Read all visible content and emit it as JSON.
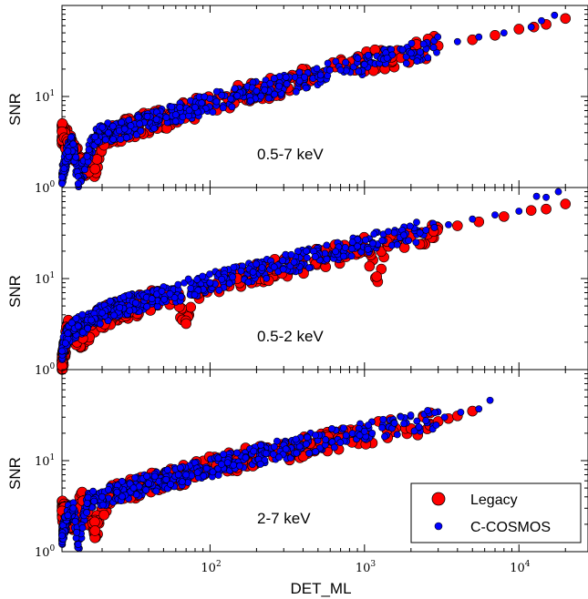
{
  "chart_data": {
    "type": "scatter",
    "xlabel": "DET_ML",
    "ylabel": "SNR",
    "xscale": "log",
    "yscale": "log",
    "xlim": [
      11,
      28000
    ],
    "ylim": [
      1,
      100
    ],
    "x_tick_labels": [
      {
        "base": "10",
        "exp": "2"
      },
      {
        "base": "10",
        "exp": "3"
      },
      {
        "base": "10",
        "exp": "4"
      }
    ],
    "y_tick_labels": [
      {
        "base": "10",
        "exp": "0"
      },
      {
        "base": "10",
        "exp": "1"
      }
    ],
    "grid": false,
    "legend": {
      "placement": "bottom-right of bottom panel",
      "entries": [
        {
          "label": "Legacy",
          "color": "#ff0000"
        },
        {
          "label": "C-COSMOS",
          "color": "#0000ff"
        }
      ]
    },
    "colors": {
      "legacy": "#ff0000",
      "ccosmos": "#0000ff",
      "edge": "#000000"
    },
    "panels": [
      {
        "band": "0.5-7 keV",
        "series": [
          {
            "name": "Legacy",
            "points": [
              [
                12,
                3.2
              ],
              [
                13,
                2.6
              ],
              [
                15,
                1.8
              ],
              [
                18,
                1.6
              ],
              [
                20,
                3.4
              ],
              [
                25,
                4.0
              ],
              [
                30,
                4.5
              ],
              [
                40,
                5.2
              ],
              [
                55,
                6.0
              ],
              [
                75,
                7.0
              ],
              [
                100,
                8.5
              ],
              [
                130,
                9.5
              ],
              [
                170,
                10.5
              ],
              [
                230,
                12.0
              ],
              [
                300,
                13.5
              ],
              [
                400,
                15.5
              ],
              [
                550,
                18.0
              ],
              [
                750,
                20.5
              ],
              [
                1000,
                23.5
              ],
              [
                1500,
                27.0
              ],
              [
                2000,
                31.0
              ],
              [
                3000,
                36.0
              ],
              [
                5000,
                42.0
              ],
              [
                7000,
                47.0
              ],
              [
                10000,
                55.0
              ],
              [
                12500,
                58.0
              ],
              [
                15000,
                62.0
              ],
              [
                20000,
                72.0
              ]
            ]
          },
          {
            "name": "C-COSMOS",
            "points": [
              [
                11,
                1.3
              ],
              [
                12,
                2.5
              ],
              [
                13,
                3.0
              ],
              [
                14,
                1.1
              ],
              [
                16,
                2.2
              ],
              [
                18,
                3.6
              ],
              [
                22,
                4.0
              ],
              [
                28,
                4.4
              ],
              [
                35,
                5.0
              ],
              [
                45,
                5.6
              ],
              [
                60,
                6.3
              ],
              [
                80,
                7.6
              ],
              [
                110,
                8.8
              ],
              [
                150,
                10.2
              ],
              [
                200,
                11.5
              ],
              [
                280,
                13.0
              ],
              [
                380,
                14.8
              ],
              [
                520,
                17.2
              ],
              [
                700,
                19.5
              ],
              [
                1000,
                22.5
              ],
              [
                1400,
                26.5
              ],
              [
                2000,
                30.0
              ],
              [
                2800,
                34.5
              ],
              [
                4000,
                40.0
              ],
              [
                5500,
                45.0
              ],
              [
                8000,
                50.0
              ],
              [
                12000,
                58.0
              ],
              [
                14000,
                68.0
              ],
              [
                17000,
                78.0
              ]
            ]
          }
        ]
      },
      {
        "band": "0.5-2 keV",
        "series": [
          {
            "name": "Legacy",
            "points": [
              [
                11,
                1.1
              ],
              [
                12,
                2.8
              ],
              [
                15,
                2.2
              ],
              [
                18,
                3.4
              ],
              [
                22,
                4.0
              ],
              [
                28,
                4.6
              ],
              [
                35,
                5.2
              ],
              [
                45,
                5.8
              ],
              [
                60,
                6.6
              ],
              [
                70,
                3.2
              ],
              [
                80,
                7.6
              ],
              [
                110,
                8.8
              ],
              [
                150,
                10.0
              ],
              [
                200,
                11.5
              ],
              [
                280,
                13.0
              ],
              [
                380,
                14.6
              ],
              [
                520,
                16.8
              ],
              [
                700,
                19.0
              ],
              [
                1000,
                22.0
              ],
              [
                1200,
                10.5
              ],
              [
                1400,
                25.5
              ],
              [
                2000,
                29.0
              ],
              [
                2800,
                33.0
              ],
              [
                4000,
                38.0
              ],
              [
                5500,
                42.0
              ],
              [
                8000,
                48.0
              ],
              [
                12000,
                56.0
              ],
              [
                15000,
                58.0
              ],
              [
                20000,
                66.0
              ]
            ]
          },
          {
            "name": "C-COSMOS",
            "points": [
              [
                11,
                1.6
              ],
              [
                12,
                2.5
              ],
              [
                14,
                3.0
              ],
              [
                17,
                3.5
              ],
              [
                20,
                4.2
              ],
              [
                26,
                4.8
              ],
              [
                33,
                5.4
              ],
              [
                42,
                6.0
              ],
              [
                55,
                6.8
              ],
              [
                75,
                7.8
              ],
              [
                100,
                9.0
              ],
              [
                140,
                10.4
              ],
              [
                190,
                11.8
              ],
              [
                260,
                13.4
              ],
              [
                350,
                15.2
              ],
              [
                480,
                17.4
              ],
              [
                650,
                19.8
              ],
              [
                900,
                22.6
              ],
              [
                1300,
                26.2
              ],
              [
                1800,
                30.0
              ],
              [
                2500,
                34.0
              ],
              [
                3500,
                39.0
              ],
              [
                5000,
                45.0
              ],
              [
                7000,
                50.0
              ],
              [
                10000,
                55.0
              ],
              [
                13000,
                80.0
              ],
              [
                15000,
                78.0
              ],
              [
                18000,
                90.0
              ]
            ]
          }
        ]
      },
      {
        "band": "2-7 keV",
        "series": [
          {
            "name": "Legacy",
            "points": [
              [
                11,
                2.8
              ],
              [
                13,
                2.2
              ],
              [
                15,
                3.6
              ],
              [
                18,
                1.7
              ],
              [
                22,
                4.2
              ],
              [
                28,
                4.6
              ],
              [
                35,
                5.2
              ],
              [
                45,
                5.8
              ],
              [
                60,
                6.6
              ],
              [
                80,
                7.6
              ],
              [
                110,
                8.8
              ],
              [
                150,
                10.0
              ],
              [
                200,
                11.2
              ],
              [
                280,
                12.6
              ],
              [
                380,
                14.0
              ],
              [
                520,
                15.6
              ],
              [
                700,
                17.4
              ],
              [
                1000,
                19.5
              ],
              [
                1400,
                21.5
              ],
              [
                2000,
                22.5
              ],
              [
                3000,
                27.0
              ],
              [
                3500,
                29.0
              ],
              [
                4000,
                31.0
              ],
              [
                5000,
                35.0
              ]
            ]
          },
          {
            "name": "C-COSMOS",
            "points": [
              [
                11,
                1.5
              ],
              [
                12,
                2.5
              ],
              [
                13,
                3.0
              ],
              [
                14,
                1.2
              ],
              [
                16,
                3.4
              ],
              [
                20,
                4.0
              ],
              [
                25,
                4.5
              ],
              [
                32,
                5.0
              ],
              [
                40,
                5.6
              ],
              [
                52,
                6.2
              ],
              [
                70,
                7.0
              ],
              [
                95,
                8.2
              ],
              [
                130,
                9.5
              ],
              [
                170,
                10.8
              ],
              [
                230,
                12.0
              ],
              [
                310,
                13.4
              ],
              [
                420,
                15.2
              ],
              [
                560,
                17.0
              ],
              [
                760,
                19.0
              ],
              [
                1000,
                21.0
              ],
              [
                1300,
                23.0
              ],
              [
                1800,
                25.5
              ],
              [
                2500,
                27.5
              ],
              [
                3300,
                30.0
              ],
              [
                4200,
                34.0
              ],
              [
                5500,
                37.0
              ],
              [
                6500,
                46.0
              ]
            ]
          }
        ]
      }
    ]
  }
}
